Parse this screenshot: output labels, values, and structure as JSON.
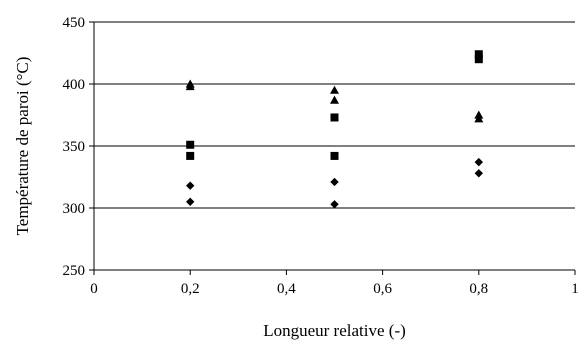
{
  "chart_data": {
    "type": "scatter",
    "title": "",
    "xlabel": "Longueur relative (-)",
    "ylabel": "Température de paroi (°C)",
    "xlim": [
      0,
      1
    ],
    "ylim": [
      250,
      450
    ],
    "x_ticks": [
      0,
      0.2,
      0.4,
      0.6,
      0.8,
      1
    ],
    "x_tick_labels": [
      "0",
      "0,2",
      "0,4",
      "0,6",
      "0,8",
      "1"
    ],
    "y_ticks": [
      250,
      300,
      350,
      400,
      450
    ],
    "y_tick_labels": [
      "250",
      "300",
      "350",
      "400",
      "450"
    ],
    "grid": "horizontal",
    "legend": "none",
    "series": [
      {
        "marker": "diamond",
        "color": "#000000",
        "points": [
          {
            "x": 0.2,
            "y": 318
          },
          {
            "x": 0.2,
            "y": 305
          },
          {
            "x": 0.5,
            "y": 321
          },
          {
            "x": 0.5,
            "y": 303
          },
          {
            "x": 0.8,
            "y": 337
          },
          {
            "x": 0.8,
            "y": 328
          }
        ]
      },
      {
        "marker": "square",
        "color": "#000000",
        "points": [
          {
            "x": 0.2,
            "y": 351
          },
          {
            "x": 0.2,
            "y": 342
          },
          {
            "x": 0.5,
            "y": 373
          },
          {
            "x": 0.5,
            "y": 342
          },
          {
            "x": 0.8,
            "y": 424
          },
          {
            "x": 0.8,
            "y": 420
          }
        ]
      },
      {
        "marker": "triangle",
        "color": "#000000",
        "points": [
          {
            "x": 0.2,
            "y": 400
          },
          {
            "x": 0.2,
            "y": 398
          },
          {
            "x": 0.5,
            "y": 395
          },
          {
            "x": 0.5,
            "y": 387
          },
          {
            "x": 0.8,
            "y": 375
          },
          {
            "x": 0.8,
            "y": 372
          }
        ]
      }
    ]
  }
}
